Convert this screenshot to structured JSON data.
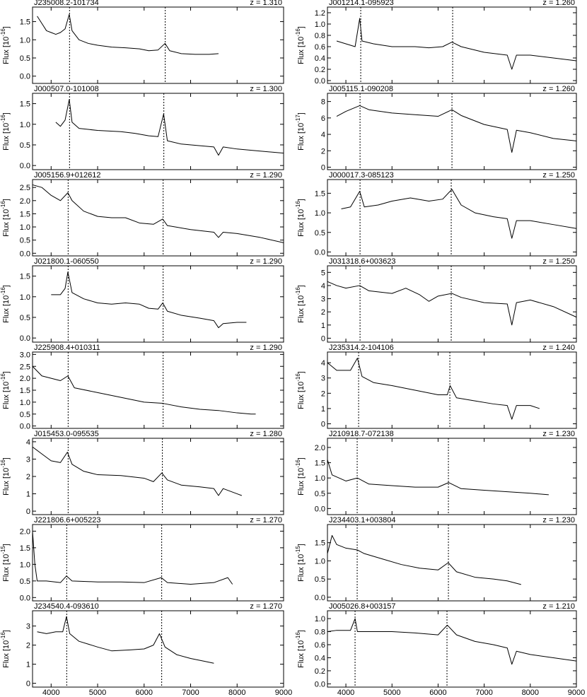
{
  "chart_data": [
    {
      "type": "line",
      "title": "J235008.2-101734",
      "annotation": "z = 1.310",
      "ylabel": "Flux [10",
      "ylabel_exponent": "-16",
      "ylabel_end": "]",
      "x": [
        3700,
        3800,
        3900,
        4000,
        4100,
        4200,
        4300,
        4390,
        4450,
        4600,
        4800,
        5000,
        5300,
        5600,
        5900,
        6100,
        6300,
        6450,
        6550,
        6800,
        7100,
        7400,
        7600
      ],
      "values": [
        1.65,
        1.45,
        1.25,
        1.2,
        1.15,
        1.2,
        1.3,
        1.7,
        1.25,
        1.0,
        0.9,
        0.85,
        0.8,
        0.78,
        0.75,
        0.7,
        0.72,
        0.9,
        0.7,
        0.62,
        0.6,
        0.6,
        0.62
      ],
      "vlines": [
        4396,
        6454
      ],
      "xlim": [
        3600,
        9000
      ],
      "xticks": [
        4000,
        5000,
        6000,
        7000,
        8000,
        9000
      ],
      "ylim": [
        -0.2,
        1.9
      ],
      "yticks": [
        {
          "value": 0,
          "label": "0.0"
        },
        0.5,
        {
          "value": 1,
          "label": "1.0"
        },
        1.5
      ]
    },
    {
      "type": "line",
      "title": "J000507.0-101008",
      "annotation": "z = 1.300",
      "ylabel": "Flux [10",
      "ylabel_exponent": "-16",
      "ylabel_end": "]",
      "x": [
        4100,
        4200,
        4300,
        4390,
        4450,
        4600,
        5000,
        5500,
        5800,
        6100,
        6300,
        6420,
        6500,
        6800,
        7200,
        7500,
        7600,
        7700,
        8000,
        8500,
        9000
      ],
      "values": [
        1.05,
        0.95,
        1.1,
        1.6,
        1.05,
        0.9,
        0.85,
        0.82,
        0.78,
        0.72,
        0.7,
        1.25,
        0.6,
        0.52,
        0.48,
        0.45,
        0.25,
        0.45,
        0.4,
        0.35,
        0.3
      ],
      "vlines": [
        4396,
        6424
      ],
      "xlim": [
        3600,
        9000
      ],
      "xticks": [
        4000,
        5000,
        6000,
        7000,
        8000,
        9000
      ],
      "ylim": [
        -0.1,
        1.75
      ],
      "yticks": [
        {
          "value": 0,
          "label": "0.0"
        },
        0.5,
        {
          "value": 1,
          "label": "1.0"
        },
        1.5
      ]
    },
    {
      "type": "line",
      "title": "J005156.9+012612",
      "annotation": "z = 1.290",
      "ylabel": "Flux [10",
      "ylabel_exponent": "-16",
      "ylabel_end": "]",
      "x": [
        3600,
        3800,
        4000,
        4200,
        4360,
        4450,
        4700,
        5000,
        5300,
        5600,
        5900,
        6200,
        6400,
        6500,
        7000,
        7500,
        7600,
        7700,
        8000,
        8500,
        9000
      ],
      "values": [
        2.6,
        2.5,
        2.2,
        2.0,
        2.3,
        2.0,
        1.6,
        1.4,
        1.35,
        1.35,
        1.15,
        1.1,
        1.3,
        1.05,
        0.9,
        0.8,
        0.6,
        0.8,
        0.75,
        0.6,
        0.4
      ],
      "vlines": [
        4366,
        6409
      ],
      "xlim": [
        3600,
        9000
      ],
      "xticks": [
        4000,
        5000,
        6000,
        7000,
        8000,
        9000
      ],
      "ylim": [
        -0.1,
        2.8
      ],
      "yticks": [
        {
          "value": 0,
          "label": "0.0"
        },
        0.5,
        {
          "value": 1,
          "label": "1.0"
        },
        1.5,
        {
          "value": 2,
          "label": "2.0"
        },
        2.5
      ]
    },
    {
      "type": "line",
      "title": "J021800.1-060550",
      "annotation": "z = 1.290",
      "ylabel": "Flux [10",
      "ylabel_exponent": "-16",
      "ylabel_end": "]",
      "x": [
        4000,
        4200,
        4300,
        4360,
        4450,
        4700,
        5000,
        5300,
        5600,
        5900,
        6100,
        6300,
        6400,
        6500,
        6800,
        7200,
        7500,
        7600,
        7700,
        8000,
        8200
      ],
      "values": [
        1.05,
        1.05,
        1.2,
        1.6,
        1.1,
        0.95,
        0.85,
        0.82,
        0.85,
        0.82,
        0.72,
        0.7,
        0.85,
        0.65,
        0.55,
        0.48,
        0.42,
        0.25,
        0.35,
        0.38,
        0.38
      ],
      "vlines": [
        4366,
        6409
      ],
      "xlim": [
        3600,
        9000
      ],
      "xticks": [
        4000,
        5000,
        6000,
        7000,
        8000,
        9000
      ],
      "ylim": [
        -0.1,
        1.75
      ],
      "yticks": [
        {
          "value": 0,
          "label": "0.0"
        },
        0.5,
        {
          "value": 1,
          "label": "1.0"
        },
        1.5
      ]
    },
    {
      "type": "line",
      "title": "J225908.4+010311",
      "annotation": "z = 1.290",
      "ylabel": "Flux [10",
      "ylabel_exponent": "-16",
      "ylabel_end": "]",
      "x": [
        3600,
        3800,
        4000,
        4200,
        4360,
        4500,
        5000,
        5500,
        6000,
        6400,
        6800,
        7200,
        7600,
        8000,
        8300,
        8400
      ],
      "values": [
        2.5,
        2.1,
        2.0,
        1.9,
        2.1,
        1.6,
        1.4,
        1.2,
        1.0,
        0.95,
        0.8,
        0.7,
        0.65,
        0.55,
        0.5,
        0.5
      ],
      "vlines": [
        4366,
        6409
      ],
      "xlim": [
        3600,
        9000
      ],
      "xticks": [
        4000,
        5000,
        6000,
        7000,
        8000,
        9000
      ],
      "ylim": [
        -0.1,
        3.1
      ],
      "yticks": [
        {
          "value": 0,
          "label": "0.0"
        },
        0.5,
        {
          "value": 1,
          "label": "1.0"
        },
        1.5,
        {
          "value": 2,
          "label": "2.0"
        },
        2.5,
        {
          "value": 3,
          "label": "3.0"
        }
      ]
    },
    {
      "type": "line",
      "title": "J015453.0-095535",
      "annotation": "z = 1.280",
      "ylabel": "Flux [10",
      "ylabel_exponent": "-16",
      "ylabel_end": "]",
      "x": [
        3600,
        3800,
        4000,
        4200,
        4350,
        4450,
        4700,
        5000,
        5500,
        6000,
        6200,
        6380,
        6500,
        6800,
        7200,
        7500,
        7600,
        7700,
        8000,
        8100
      ],
      "values": [
        3.7,
        3.3,
        2.9,
        2.8,
        3.4,
        2.7,
        2.3,
        2.1,
        2.05,
        1.9,
        1.7,
        2.2,
        1.8,
        1.5,
        1.4,
        1.3,
        0.9,
        1.3,
        1.0,
        0.9
      ],
      "vlines": [
        4366,
        6393
      ],
      "xlim": [
        3600,
        9000
      ],
      "xticks": [
        4000,
        5000,
        6000,
        7000,
        8000,
        9000
      ],
      "ylim": [
        -0.2,
        4.2
      ],
      "yticks": [
        0,
        1,
        2,
        3,
        4
      ]
    },
    {
      "type": "line",
      "title": "J221806.6+005223",
      "annotation": "z = 1.270",
      "ylabel": "Flux [10",
      "ylabel_exponent": "-15",
      "ylabel_end": "]",
      "x": [
        3600,
        3650,
        3700,
        3900,
        4200,
        4330,
        4450,
        5000,
        5500,
        6000,
        6370,
        6500,
        7000,
        7500,
        7800,
        7900
      ],
      "values": [
        2.0,
        1.0,
        0.5,
        0.5,
        0.45,
        0.65,
        0.5,
        0.47,
        0.47,
        0.45,
        0.6,
        0.45,
        0.4,
        0.45,
        0.6,
        0.4
      ],
      "vlines": [
        4335,
        6378
      ],
      "xlim": [
        3600,
        9000
      ],
      "xticks": [
        4000,
        5000,
        6000,
        7000,
        8000,
        9000
      ],
      "ylim": [
        -0.1,
        2.2
      ],
      "yticks": [
        {
          "value": 0,
          "label": "0.0"
        },
        0.5,
        {
          "value": 1,
          "label": "1.0"
        },
        1.5,
        {
          "value": 2,
          "label": "2.0"
        }
      ]
    },
    {
      "type": "line",
      "title": "J234540.4-093610",
      "annotation": "z = 1.270",
      "ylabel": "Flux [10",
      "ylabel_exponent": "-16",
      "ylabel_end": "]",
      "x": [
        3700,
        3900,
        4100,
        4250,
        4330,
        4400,
        4600,
        5000,
        5300,
        5700,
        6000,
        6200,
        6330,
        6450,
        6700,
        7000,
        7300,
        7500
      ],
      "values": [
        2.7,
        2.6,
        2.7,
        2.7,
        3.5,
        2.6,
        2.2,
        1.9,
        1.7,
        1.75,
        1.8,
        2.0,
        2.6,
        1.9,
        1.5,
        1.3,
        1.15,
        1.05
      ],
      "vlines": [
        4335,
        6378
      ],
      "xlim": [
        3600,
        9000
      ],
      "xticks": [
        4000,
        5000,
        6000,
        7000,
        8000,
        9000
      ],
      "ylim": [
        -0.2,
        3.8
      ],
      "yticks": [
        0,
        1,
        2,
        3
      ]
    },
    {
      "type": "line",
      "title": "J001214.1-095923",
      "annotation": "z = 1.260",
      "ylabel": "Flux [10",
      "ylabel_exponent": "-16",
      "ylabel_end": "]",
      "x": [
        3800,
        4000,
        4200,
        4300,
        4350,
        4600,
        5000,
        5500,
        5800,
        6100,
        6300,
        6500,
        7000,
        7500,
        7600,
        7700,
        8000,
        8500,
        9000
      ],
      "values": [
        0.7,
        0.65,
        0.6,
        1.1,
        0.7,
        0.65,
        0.6,
        0.6,
        0.58,
        0.6,
        0.68,
        0.6,
        0.5,
        0.45,
        0.2,
        0.45,
        0.45,
        0.4,
        0.35
      ],
      "vlines": [
        4322,
        6316
      ],
      "xlim": [
        3600,
        9000
      ],
      "xticks": [
        4000,
        5000,
        6000,
        7000,
        8000,
        9000
      ],
      "ylim": [
        -0.05,
        1.3
      ],
      "yticks": [
        {
          "value": 0,
          "label": "0.0"
        },
        0.2,
        0.4,
        0.6,
        0.8,
        {
          "value": 1,
          "label": "1.0"
        },
        1.2
      ]
    },
    {
      "type": "line",
      "title": "J005115.1-090208",
      "annotation": "z = 1.260",
      "ylabel": "Flux [10",
      "ylabel_exponent": "-17",
      "ylabel_end": "]",
      "x": [
        3800,
        4000,
        4300,
        4500,
        5000,
        5500,
        6000,
        6300,
        6500,
        7000,
        7500,
        7600,
        7700,
        8000,
        8500,
        9000
      ],
      "values": [
        6.2,
        6.8,
        7.5,
        7.0,
        6.6,
        6.4,
        6.2,
        7.0,
        6.3,
        5.2,
        4.6,
        1.8,
        4.5,
        4.2,
        3.5,
        3.2
      ],
      "vlines": [
        4307,
        6301
      ],
      "xlim": [
        3600,
        9000
      ],
      "xticks": [
        4000,
        5000,
        6000,
        7000,
        8000,
        9000
      ],
      "ylim": [
        -0.3,
        9
      ],
      "yticks": [
        0,
        2,
        4,
        6,
        8
      ]
    },
    {
      "type": "line",
      "title": "J000017.3-085123",
      "annotation": "z = 1.250",
      "ylabel": "Flux [10",
      "ylabel_exponent": "-16",
      "ylabel_end": "]",
      "x": [
        3900,
        4100,
        4300,
        4400,
        4700,
        5000,
        5400,
        5800,
        6100,
        6300,
        6500,
        6800,
        7200,
        7500,
        7600,
        7700,
        8000,
        8500,
        9000
      ],
      "values": [
        1.1,
        1.15,
        1.55,
        1.15,
        1.2,
        1.3,
        1.38,
        1.3,
        1.35,
        1.6,
        1.2,
        1.0,
        0.9,
        0.85,
        0.35,
        0.8,
        0.8,
        0.7,
        0.6
      ],
      "vlines": [
        4307,
        6285
      ],
      "xlim": [
        3600,
        9000
      ],
      "xticks": [
        4000,
        5000,
        6000,
        7000,
        8000,
        9000
      ],
      "ylim": [
        -0.1,
        1.85
      ],
      "yticks": [
        {
          "value": 0,
          "label": "0.0"
        },
        0.5,
        {
          "value": 1,
          "label": "1.0"
        },
        1.5
      ]
    },
    {
      "type": "line",
      "title": "J031318.6+003623",
      "annotation": "z = 1.250",
      "ylabel": "Flux [10",
      "ylabel_exponent": "-16",
      "ylabel_end": "]",
      "x": [
        3600,
        3800,
        4000,
        4300,
        4500,
        5000,
        5300,
        5600,
        5800,
        6000,
        6300,
        6500,
        7000,
        7500,
        7600,
        7700,
        8000,
        8500,
        9000
      ],
      "values": [
        4.3,
        4.0,
        3.8,
        4.0,
        3.6,
        3.4,
        3.8,
        3.3,
        2.8,
        3.2,
        3.4,
        3.1,
        2.7,
        2.6,
        1.0,
        2.7,
        2.9,
        2.4,
        1.6
      ],
      "vlines": [
        4307,
        6285
      ],
      "xlim": [
        3600,
        9000
      ],
      "xticks": [
        4000,
        5000,
        6000,
        7000,
        8000,
        9000
      ],
      "ylim": [
        -0.3,
        5.5
      ],
      "yticks": [
        0,
        1,
        2,
        3,
        4,
        5
      ]
    },
    {
      "type": "line",
      "title": "J235314.2-104106",
      "annotation": "z = 1.240",
      "ylabel": "Flux [10",
      "ylabel_exponent": "-16",
      "ylabel_end": "]",
      "x": [
        3600,
        3800,
        4100,
        4250,
        4350,
        4600,
        5000,
        5500,
        6000,
        6200,
        6260,
        6400,
        6800,
        7200,
        7500,
        7600,
        7700,
        8000,
        8200
      ],
      "values": [
        4.0,
        3.5,
        3.5,
        4.3,
        3.1,
        2.7,
        2.5,
        2.2,
        1.9,
        1.9,
        2.5,
        1.7,
        1.5,
        1.3,
        1.2,
        0.3,
        1.2,
        1.2,
        1.0
      ],
      "vlines": [
        4276,
        6255
      ],
      "xlim": [
        3600,
        9000
      ],
      "xticks": [
        4000,
        5000,
        6000,
        7000,
        8000,
        9000
      ],
      "ylim": [
        -0.3,
        4.7
      ],
      "yticks": [
        0,
        1,
        2,
        3,
        4
      ]
    },
    {
      "type": "line",
      "title": "J210918.7-072138",
      "annotation": "z = 1.230",
      "ylabel": "Flux [10",
      "ylabel_exponent": "-16",
      "ylabel_end": "]",
      "x": [
        3600,
        3700,
        4000,
        4250,
        4500,
        5000,
        5500,
        6000,
        6230,
        6500,
        7000,
        7500,
        8000,
        8400
      ],
      "values": [
        1.6,
        1.1,
        0.9,
        1.0,
        0.8,
        0.75,
        0.7,
        0.7,
        0.85,
        0.65,
        0.6,
        0.55,
        0.5,
        0.45
      ],
      "vlines": [
        4245,
        6224
      ],
      "xlim": [
        3600,
        9000
      ],
      "xticks": [
        4000,
        5000,
        6000,
        7000,
        8000,
        9000
      ],
      "ylim": [
        -0.2,
        2.3
      ],
      "yticks": [
        {
          "value": 0,
          "label": "0.0"
        },
        0.5,
        {
          "value": 1,
          "label": "1.0"
        },
        1.5,
        {
          "value": 2,
          "label": "2.0"
        }
      ]
    },
    {
      "type": "line",
      "title": "J234403.1+003804",
      "annotation": "z = 1.230",
      "ylabel": "Flux [10",
      "ylabel_exponent": "-15",
      "ylabel_end": "]",
      "x": [
        3600,
        3700,
        3800,
        4000,
        4250,
        4400,
        4800,
        5200,
        5600,
        6000,
        6220,
        6400,
        6800,
        7200,
        7500,
        7800
      ],
      "values": [
        1.2,
        1.7,
        1.45,
        1.35,
        1.3,
        1.2,
        1.05,
        0.9,
        0.8,
        0.75,
        0.95,
        0.7,
        0.55,
        0.5,
        0.45,
        0.35
      ],
      "vlines": [
        4245,
        6224
      ],
      "xlim": [
        3600,
        9000
      ],
      "xticks": [
        4000,
        5000,
        6000,
        7000,
        8000,
        9000
      ],
      "ylim": [
        -0.1,
        2.0
      ],
      "yticks": [
        {
          "value": 0,
          "label": "0.0"
        },
        0.5,
        {
          "value": 1,
          "label": "1.0"
        },
        1.5
      ]
    },
    {
      "type": "line",
      "title": "J005026.8+003157",
      "annotation": "z = 1.210",
      "ylabel": "Flux [10",
      "ylabel_exponent": "-16",
      "ylabel_end": "]",
      "x": [
        3600,
        3800,
        4100,
        4200,
        4250,
        4600,
        5000,
        5500,
        6000,
        6200,
        6400,
        6800,
        7200,
        7500,
        7600,
        7700,
        8000,
        8500,
        9000
      ],
      "values": [
        0.8,
        0.82,
        0.82,
        1.0,
        0.8,
        0.8,
        0.8,
        0.78,
        0.75,
        0.9,
        0.75,
        0.65,
        0.6,
        0.55,
        0.3,
        0.5,
        0.45,
        0.4,
        0.35
      ],
      "vlines": [
        4199,
        6193
      ],
      "xlim": [
        3600,
        9000
      ],
      "xticks": [
        4000,
        5000,
        6000,
        7000,
        8000,
        9000
      ],
      "ylim": [
        -0.05,
        1.12
      ],
      "yticks": [
        {
          "value": 0,
          "label": "0.0"
        },
        0.2,
        0.4,
        0.6,
        0.8,
        {
          "value": 1,
          "label": "1.0"
        }
      ]
    }
  ]
}
